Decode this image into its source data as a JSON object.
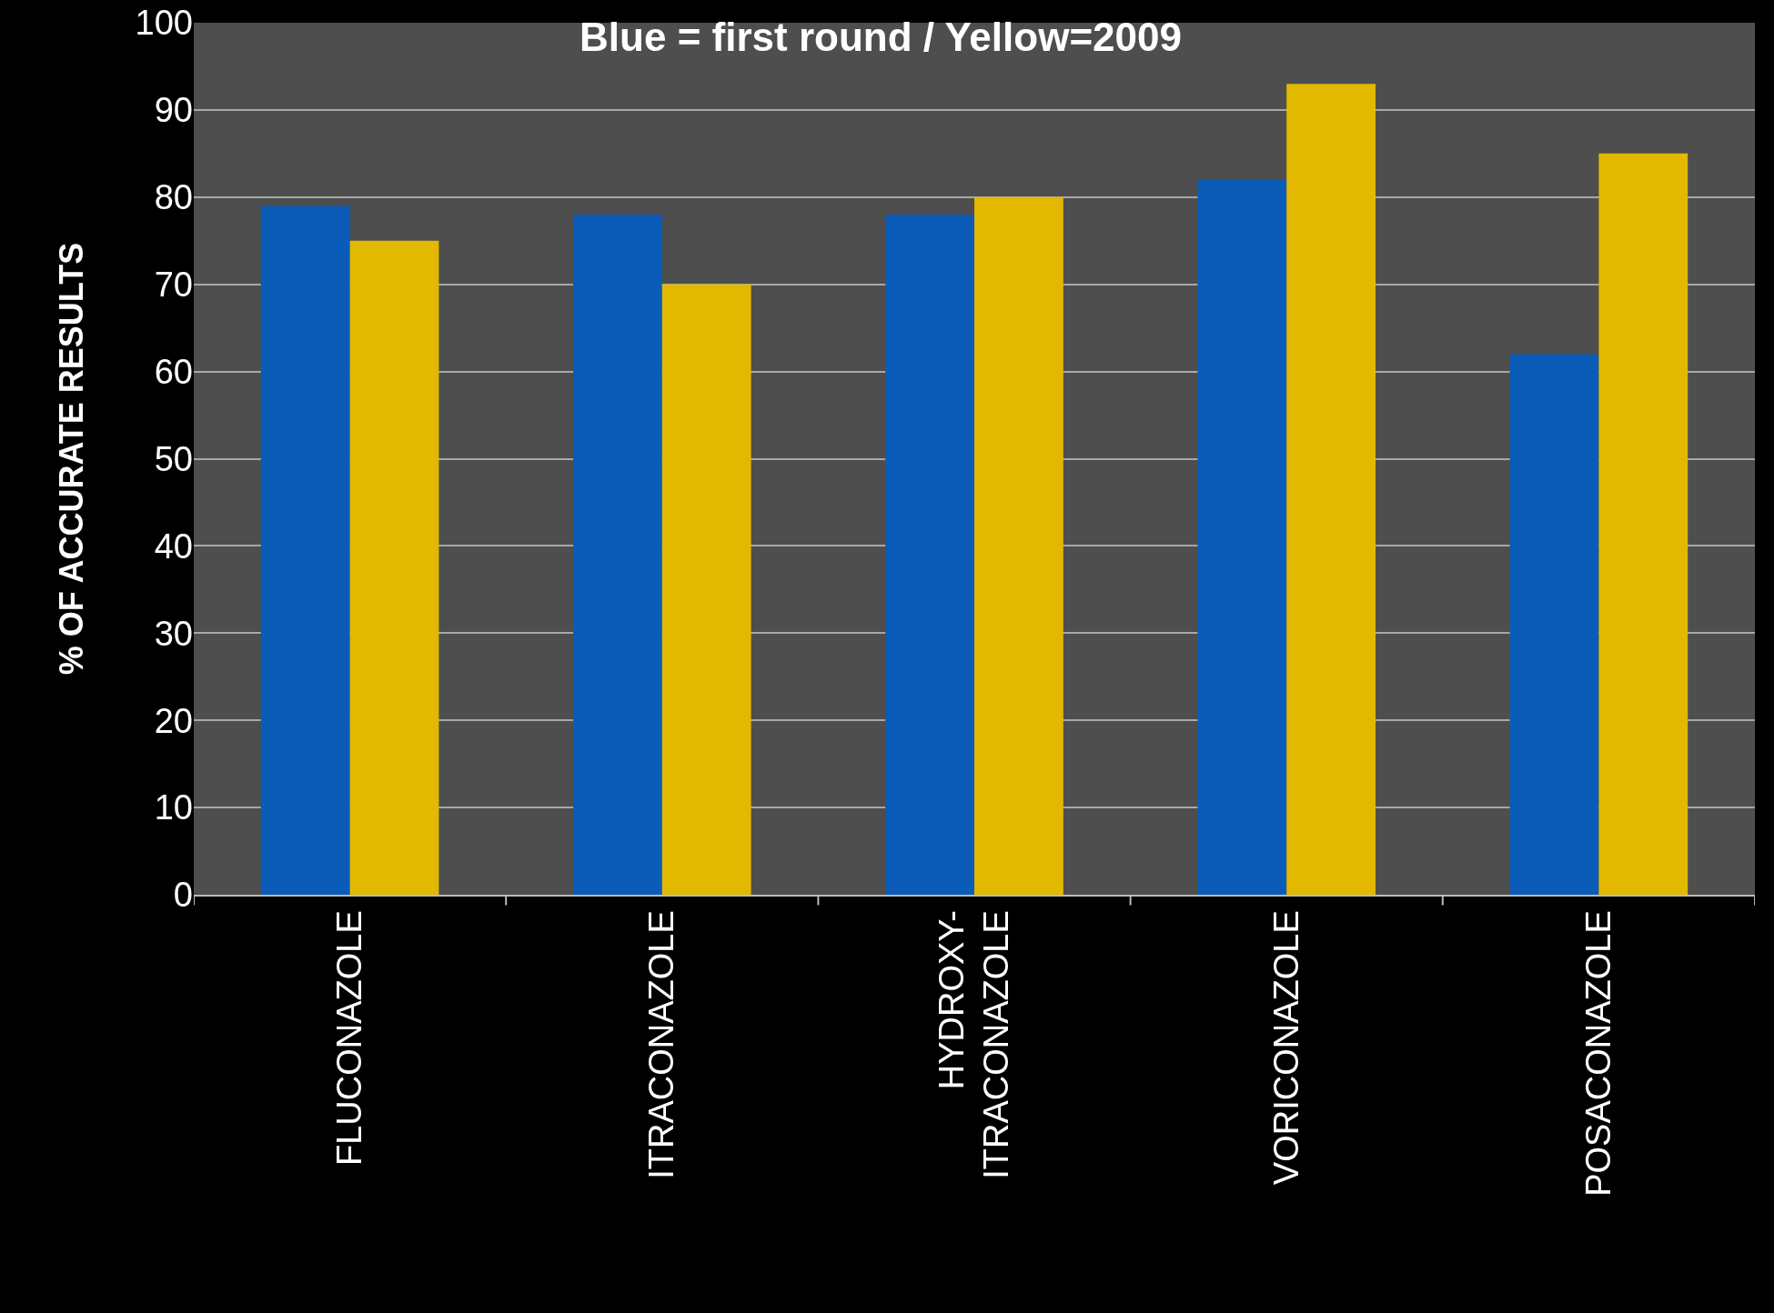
{
  "chart_data": {
    "type": "bar",
    "title": "Blue = first round / Yellow=2009",
    "ylabel": "% OF ACCURATE RESULTS",
    "categories": [
      "FLUCONAZOLE",
      "ITRACONAZOLE",
      "HYDROXY-\nITRACONAZOLE",
      "VORICONAZOLE",
      "POSACONAZOLE"
    ],
    "series": [
      {
        "color": "#0a5cb8",
        "values": [
          79,
          78,
          78,
          82,
          62
        ]
      },
      {
        "color": "#e2b800",
        "values": [
          75,
          70,
          80,
          93,
          85
        ]
      }
    ],
    "ylim": [
      0,
      100
    ],
    "yticks": [
      0,
      10,
      20,
      30,
      40,
      50,
      60,
      70,
      80,
      90,
      100
    ],
    "grid": "y"
  }
}
